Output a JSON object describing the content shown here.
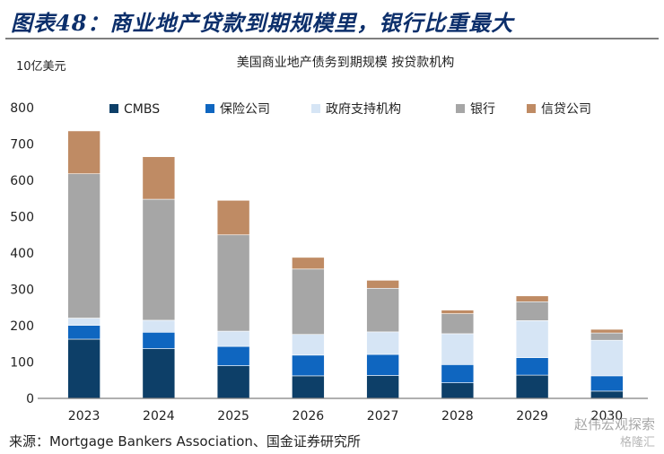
{
  "figure_title": "图表48：商业地产贷款到期规模里，银行比重最大",
  "source": "来源：Mortgage Bankers Association、国金证券研究所",
  "watermark": "赵伟宏观探索",
  "watermark2": "格隆汇",
  "colors": {
    "title": "#0c2f6b",
    "CMBS": "#0d3f68",
    "insurance": "#0f66c0",
    "gse": "#d6e5f5",
    "bank": "#a6a6a6",
    "credit": "#bf8b64"
  },
  "chart_data": {
    "type": "bar",
    "stacked": true,
    "title": "美国商业地产债务到期规模 按贷款机构",
    "unit_label": "10亿美元",
    "categories": [
      "2023",
      "2024",
      "2025",
      "2026",
      "2027",
      "2028",
      "2029",
      "2030"
    ],
    "ylim": [
      0,
      800
    ],
    "yticks": [
      0,
      100,
      200,
      300,
      400,
      500,
      600,
      700,
      800
    ],
    "grid": false,
    "legend_position": "top",
    "series": [
      {
        "name": "CMBS",
        "color": "#0d3f68",
        "values": [
          163,
          137,
          90,
          62,
          63,
          43,
          64,
          20
        ]
      },
      {
        "name": "保险公司",
        "color": "#0f66c0",
        "values": [
          38,
          45,
          53,
          57,
          58,
          50,
          48,
          42
        ]
      },
      {
        "name": "政府支持机构",
        "color": "#d6e5f5",
        "values": [
          20,
          33,
          42,
          57,
          62,
          85,
          102,
          98
        ]
      },
      {
        "name": "银行",
        "color": "#a6a6a6",
        "values": [
          397,
          333,
          265,
          180,
          120,
          55,
          52,
          20
        ]
      },
      {
        "name": "信贷公司",
        "color": "#bf8b64",
        "values": [
          118,
          117,
          95,
          32,
          22,
          10,
          16,
          10
        ]
      }
    ]
  }
}
